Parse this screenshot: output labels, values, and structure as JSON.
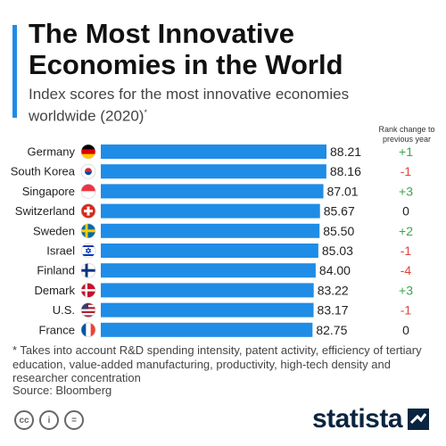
{
  "title": "The Most Innovative Economies in the World",
  "subtitle": "Index scores for the most innovative economies worldwide (2020)",
  "subtitle_mark": "*",
  "rank_header": "Rank change to previous year",
  "footnote": "* Takes into account R&D spending intensity, patent activity, efficiency of tertiary education, value-added manufacturing, productivity, high-tech density and researcher concentration",
  "source": "Source: Bloomberg",
  "brand": "statista",
  "cc_icons": [
    "cc",
    "i",
    "="
  ],
  "colors": {
    "bar": "#1f8ce6",
    "positive": "#3aa64a",
    "negative": "#e0413a",
    "neutral": "#222222",
    "brand": "#0a2540"
  },
  "chart_data": {
    "type": "bar",
    "orientation": "horizontal",
    "categories": [
      "Germany",
      "South Korea",
      "Singapore",
      "Switzerland",
      "Sweden",
      "Israel",
      "Finland",
      "Demark",
      "U.S.",
      "France"
    ],
    "values": [
      88.21,
      88.16,
      87.01,
      85.67,
      85.5,
      85.03,
      84.0,
      83.22,
      83.17,
      82.75
    ],
    "value_labels": [
      "88.21",
      "88.16",
      "87.01",
      "85.67",
      "85.50",
      "85.03",
      "84.00",
      "83.22",
      "83.17",
      "82.75"
    ],
    "rank_change": [
      "+1",
      "-1",
      "+3",
      "0",
      "+2",
      "-1",
      "-4",
      "+3",
      "-1",
      "0"
    ],
    "flags": [
      "germany-flag",
      "south-korea-flag",
      "singapore-flag",
      "switzerland-flag",
      "sweden-flag",
      "israel-flag",
      "finland-flag",
      "denmark-flag",
      "us-flag",
      "france-flag"
    ],
    "xlim": [
      0,
      88.21
    ],
    "grid": false,
    "legend": "none"
  }
}
